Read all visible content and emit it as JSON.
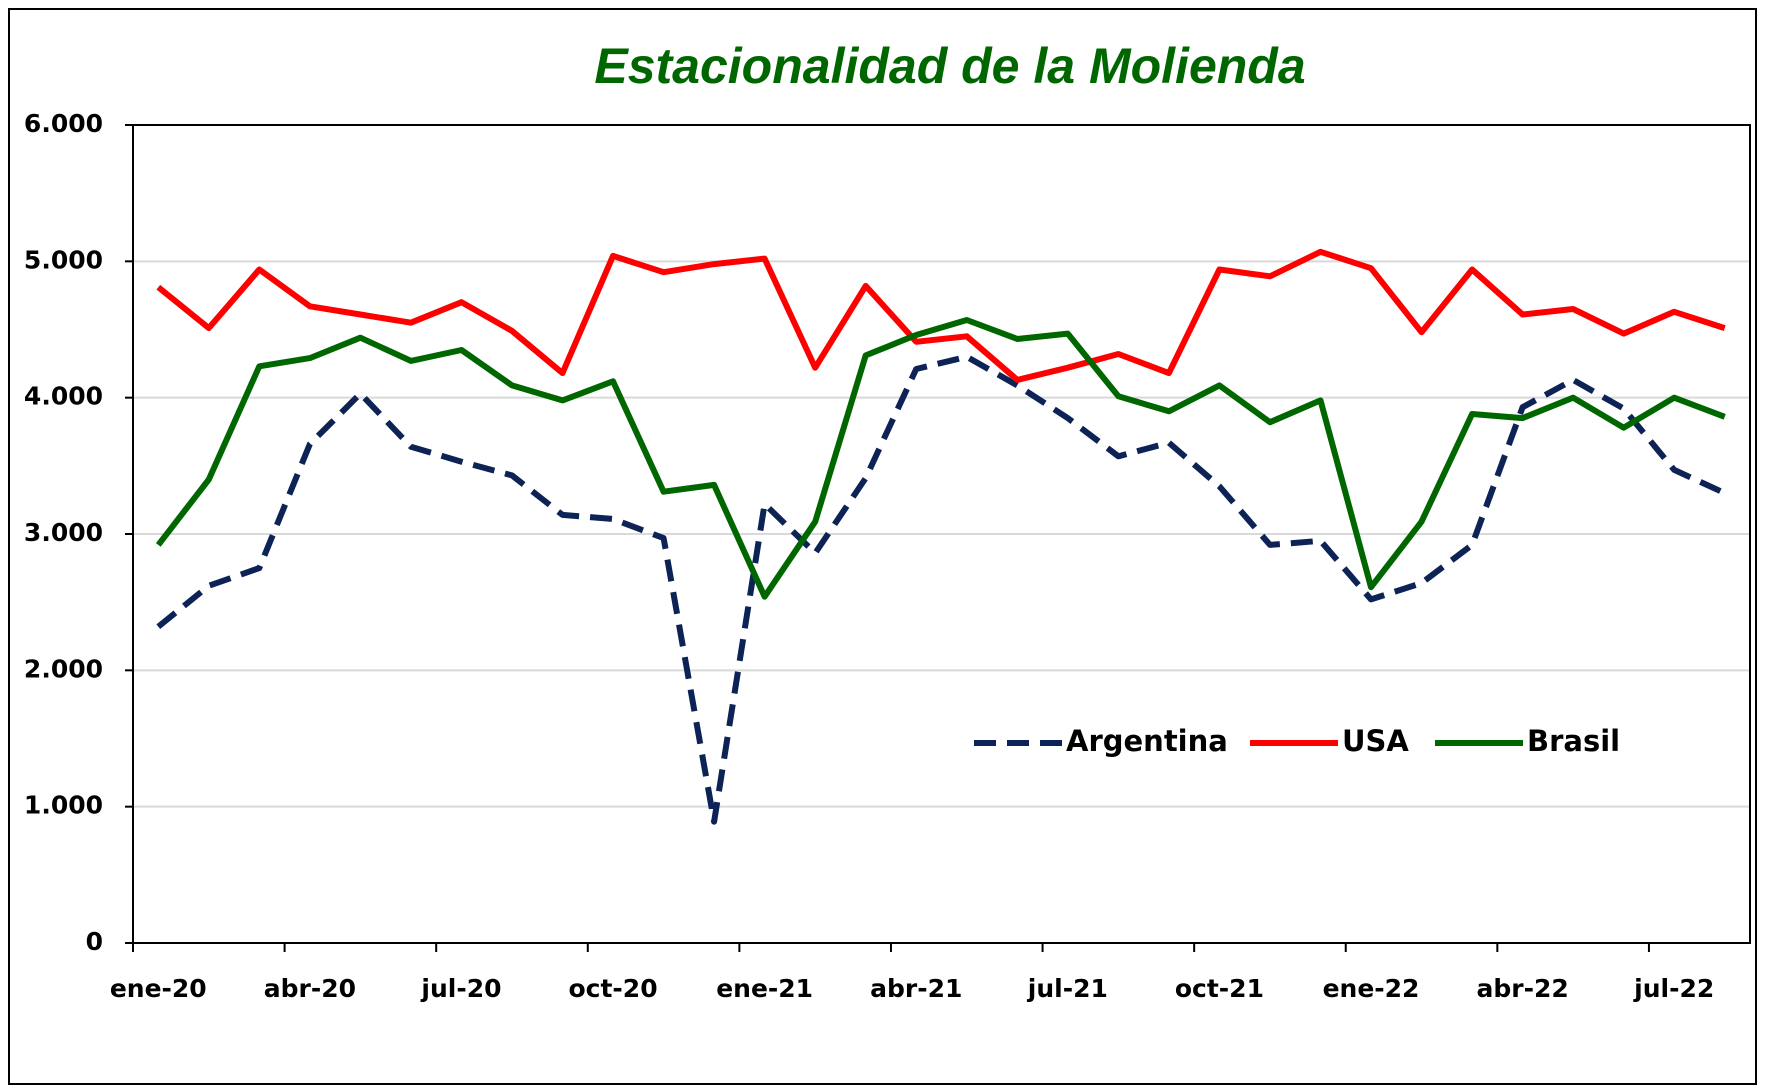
{
  "chart_data": {
    "type": "line",
    "title": "Estacionalidad de la Molienda",
    "categories": [
      "ene-20",
      null,
      null,
      "abr-20",
      null,
      null,
      "jul-20",
      null,
      null,
      "oct-20",
      null,
      null,
      "ene-21",
      null,
      null,
      "abr-21",
      null,
      null,
      "jul-21",
      null,
      null,
      "oct-21",
      null,
      null,
      "ene-22",
      null,
      null,
      "abr-22",
      null,
      null,
      "jul-22",
      null
    ],
    "series": [
      {
        "name": "Argentina",
        "color": "#0d2356",
        "dash": true,
        "values": [
          2320,
          2620,
          2750,
          3660,
          4030,
          3640,
          3530,
          3430,
          3140,
          3110,
          2970,
          890,
          3220,
          2860,
          3410,
          4210,
          4300,
          4090,
          3850,
          3570,
          3670,
          3350,
          2920,
          2950,
          2520,
          2640,
          2920,
          3930,
          4130,
          3920,
          3470,
          3300
        ]
      },
      {
        "name": "USA",
        "color": "#ff0000",
        "values": [
          4810,
          4510,
          4940,
          4670,
          4610,
          4550,
          4700,
          4490,
          4180,
          5040,
          4920,
          4980,
          5020,
          4220,
          4820,
          4410,
          4450,
          4130,
          4220,
          4320,
          4180,
          4940,
          4890,
          5070,
          4950,
          4480,
          4940,
          4610,
          4650,
          4470,
          4630,
          4510
        ]
      },
      {
        "name": "Brasil",
        "color": "#006600",
        "values": [
          2920,
          3400,
          4230,
          4290,
          4440,
          4270,
          4350,
          4090,
          3980,
          4120,
          3310,
          3360,
          2540,
          3090,
          4310,
          4460,
          4570,
          4430,
          4470,
          4010,
          3900,
          4090,
          3820,
          3980,
          2610,
          3090,
          3880,
          3850,
          4000,
          3780,
          4000,
          3860
        ]
      }
    ],
    "ylim": [
      0,
      6000
    ],
    "yticks": [
      0,
      {
        "value": 1000,
        "label": "1.000"
      },
      {
        "value": 2000,
        "label": "2.000"
      },
      {
        "value": 3000,
        "label": "3.000"
      },
      {
        "value": 4000,
        "label": "4.000"
      },
      {
        "value": 5000,
        "label": "5.000"
      },
      {
        "value": 6000,
        "label": "6.000"
      }
    ],
    "grid": true
  }
}
